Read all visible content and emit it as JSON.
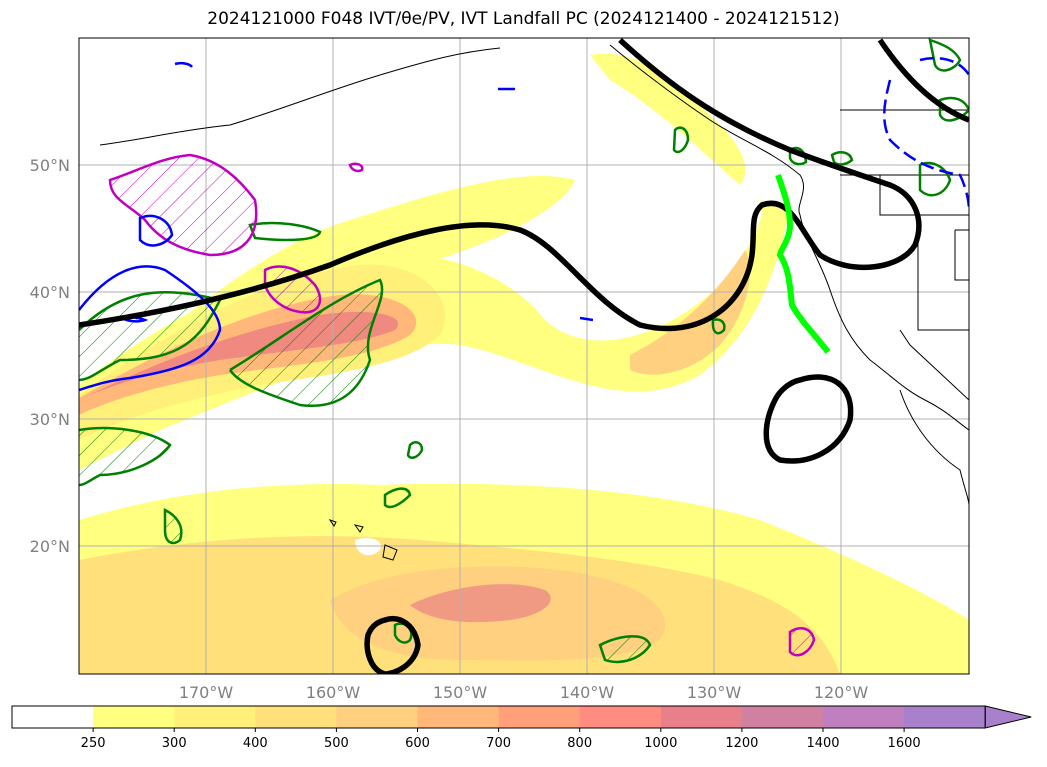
{
  "title": "2024121000 F048 IVT/θe/PV, IVT Landfall PC (2024121400 - 2024121512)",
  "map": {
    "lat_labels": [
      "50°N",
      "40°N",
      "30°N",
      "20°N"
    ],
    "lon_labels": [
      "170°W",
      "160°W",
      "150°W",
      "140°W",
      "130°W",
      "120°W"
    ],
    "lat_range": [
      10,
      60
    ],
    "lon_range": [
      -180,
      -110
    ],
    "grid": true
  },
  "colorbar": {
    "levels": [
      "250",
      "300",
      "400",
      "500",
      "600",
      "700",
      "800",
      "1000",
      "1200",
      "1400",
      "1600"
    ],
    "colors": [
      "#ffffff",
      "#ffff80",
      "#fff07a",
      "#ffe07a",
      "#ffd080",
      "#ffb87a",
      "#ffa07a",
      "#ff8c80",
      "#e8808c",
      "#d080a0",
      "#c080c0",
      "#a880cc"
    ],
    "extend": "max"
  },
  "colors": {
    "ivt_core": "#f08a80",
    "theta_e_contour": "#000000",
    "pv_contour_positive": "#008000",
    "pv_contour_negative": "#0000ff",
    "pv_hatch_magenta": "#c000c0",
    "landfall_pc": "#00ff00"
  }
}
